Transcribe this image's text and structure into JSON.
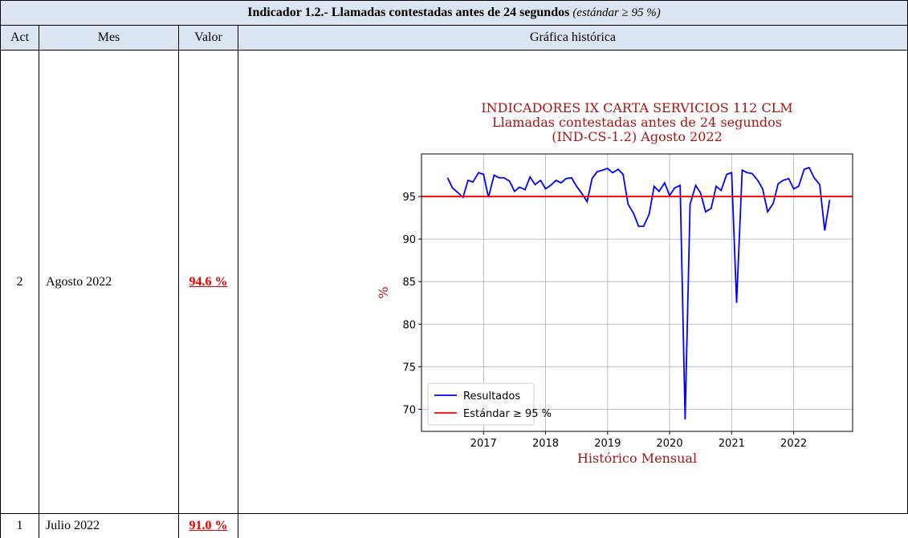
{
  "table": {
    "title": "Indicador 1.2.- Llamadas contestadas antes de 24 segundos",
    "title_note": "(estándar ≥ 95 %)",
    "headers": [
      "Act",
      "Mes",
      "Valor",
      "Gráfica histórica"
    ],
    "rows": [
      [
        "2",
        "Agosto 2022",
        "94.6 %"
      ],
      [
        "1",
        "Julio 2022",
        "91.0 %"
      ]
    ]
  },
  "chart_data": {
    "type": "line",
    "title": [
      "INDICADORES IX CARTA SERVICIOS 112 CLM",
      "Llamadas contestadas antes de 24 segundos",
      "(IND-CS-1.2) Agosto 2022"
    ],
    "xlabel": "Histórico Mensual",
    "ylabel": "%",
    "x": [
      2016.42,
      2016.5,
      2016.58,
      2016.67,
      2016.75,
      2016.83,
      2016.92,
      2017.0,
      2017.08,
      2017.17,
      2017.25,
      2017.33,
      2017.42,
      2017.5,
      2017.58,
      2017.67,
      2017.75,
      2017.83,
      2017.92,
      2018.0,
      2018.08,
      2018.17,
      2018.25,
      2018.33,
      2018.42,
      2018.5,
      2018.58,
      2018.67,
      2018.75,
      2018.83,
      2018.92,
      2019.0,
      2019.08,
      2019.17,
      2019.25,
      2019.33,
      2019.42,
      2019.5,
      2019.58,
      2019.67,
      2019.75,
      2019.83,
      2019.92,
      2020.0,
      2020.08,
      2020.17,
      2020.25,
      2020.33,
      2020.42,
      2020.5,
      2020.58,
      2020.67,
      2020.75,
      2020.83,
      2020.92,
      2021.0,
      2021.08,
      2021.17,
      2021.25,
      2021.33,
      2021.42,
      2021.5,
      2021.58,
      2021.67,
      2021.75,
      2021.83,
      2021.92,
      2022.0,
      2022.08,
      2022.17,
      2022.25,
      2022.33,
      2022.42,
      2022.5,
      2022.58
    ],
    "series": [
      {
        "name": "Resultados",
        "color": "#0000ff",
        "values": [
          97.2,
          96.0,
          95.5,
          94.9,
          96.9,
          96.7,
          97.8,
          97.6,
          94.9,
          97.5,
          97.2,
          97.2,
          96.8,
          95.6,
          96.1,
          95.8,
          97.3,
          96.4,
          96.9,
          95.9,
          96.3,
          96.9,
          96.6,
          97.1,
          97.2,
          96.2,
          95.4,
          94.4,
          97.1,
          97.9,
          98.1,
          98.3,
          97.8,
          98.2,
          97.6,
          94.1,
          93.0,
          91.5,
          91.5,
          92.9,
          96.2,
          95.6,
          96.6,
          95.1,
          96.0,
          96.3,
          68.8,
          94.1,
          96.3,
          95.4,
          93.2,
          93.6,
          96.2,
          95.7,
          97.6,
          97.8,
          82.5,
          98.1,
          97.8,
          97.7,
          96.9,
          95.9,
          93.2,
          94.2,
          96.5,
          96.9,
          97.1,
          95.9,
          96.2,
          98.2,
          98.4,
          97.2,
          96.4,
          91.0,
          94.6
        ]
      }
    ],
    "reference": {
      "name": "Estándar ≥ 95 %",
      "value": 95,
      "color": "#ff0000"
    },
    "xlim": [
      2016.0,
      2022.95
    ],
    "ylim": [
      67.4,
      100
    ],
    "xticks": [
      2017,
      2018,
      2019,
      2020,
      2021,
      2022
    ],
    "yticks": [
      70,
      75,
      80,
      85,
      90,
      95
    ],
    "grid": true,
    "legend": "lower left"
  }
}
